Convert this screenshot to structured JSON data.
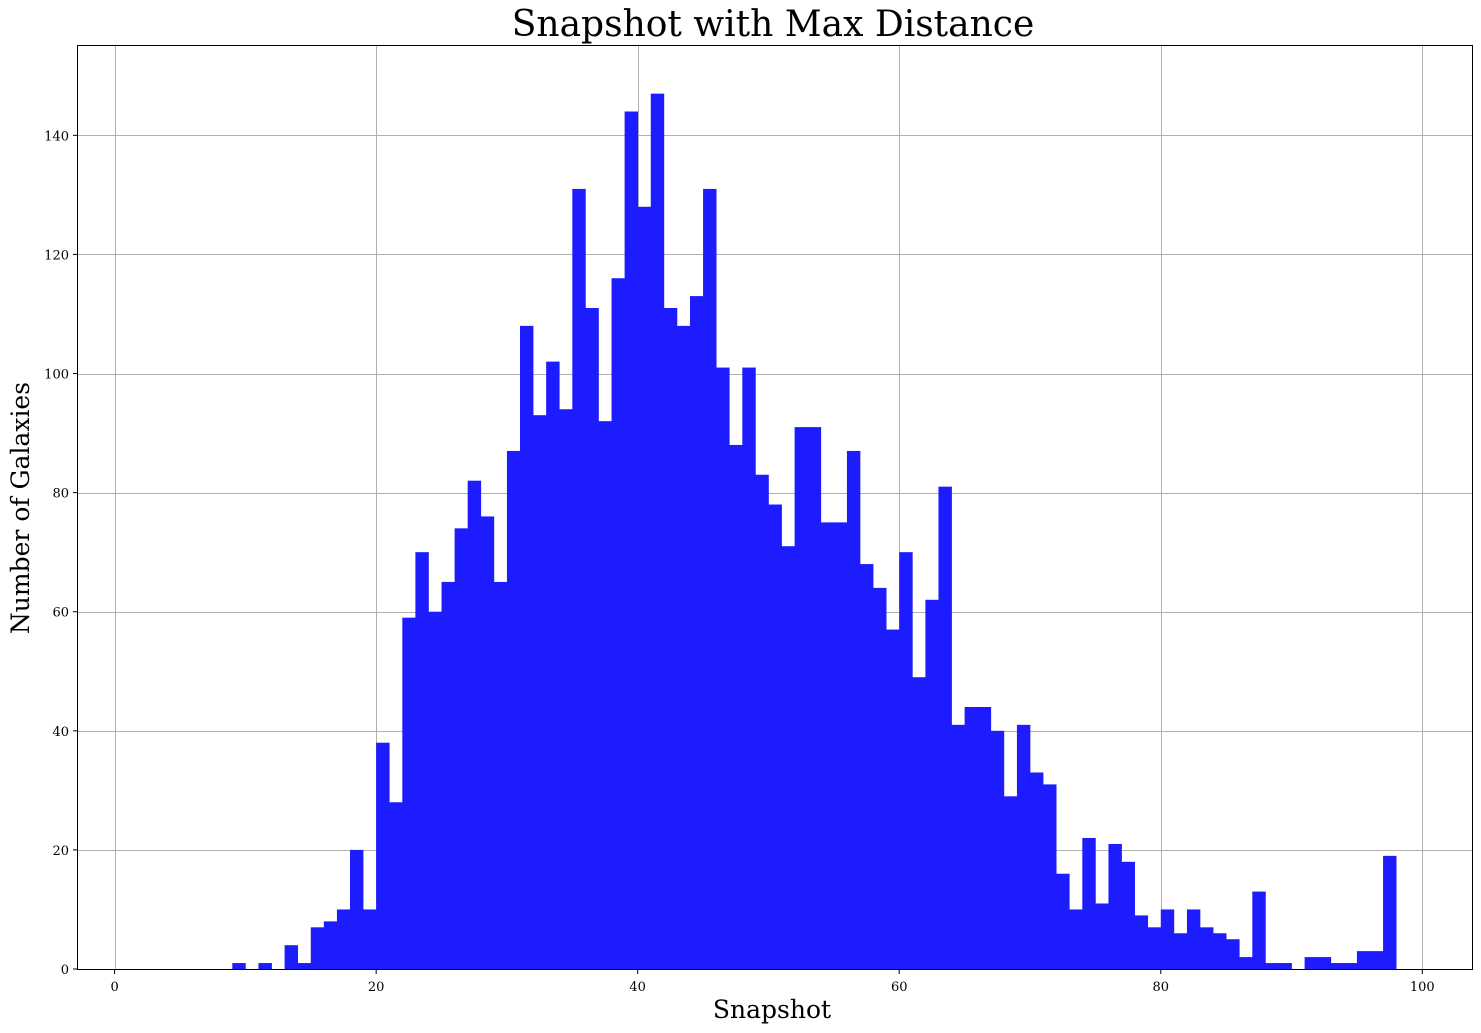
{
  "chart_data": {
    "type": "bar",
    "title": "Snapshot with Max Distance",
    "xlabel": "Snapshot",
    "ylabel": "Number of Galaxies",
    "xlim": [
      -2.8,
      103.8
    ],
    "ylim": [
      0,
      155
    ],
    "xticks": [
      0,
      20,
      40,
      60,
      80,
      100
    ],
    "yticks": [
      0,
      20,
      40,
      60,
      80,
      100,
      120,
      140
    ],
    "grid": true,
    "bar_color": "#1c1cff",
    "bins_start": 9,
    "bin_width": 1,
    "values": [
      1,
      0,
      1,
      0,
      4,
      1,
      7,
      8,
      10,
      20,
      10,
      38,
      28,
      59,
      70,
      60,
      65,
      74,
      82,
      76,
      65,
      87,
      108,
      93,
      102,
      94,
      131,
      111,
      92,
      116,
      144,
      128,
      147,
      111,
      108,
      113,
      131,
      101,
      88,
      101,
      83,
      78,
      71,
      91,
      91,
      75,
      75,
      87,
      68,
      64,
      57,
      70,
      49,
      62,
      81,
      41,
      44,
      44,
      40,
      29,
      41,
      33,
      31,
      16,
      10,
      22,
      11,
      21,
      18,
      9,
      7,
      10,
      6,
      10,
      7,
      6,
      5,
      2,
      13,
      1,
      1,
      0,
      2,
      2,
      1,
      1,
      3,
      3,
      19
    ]
  }
}
